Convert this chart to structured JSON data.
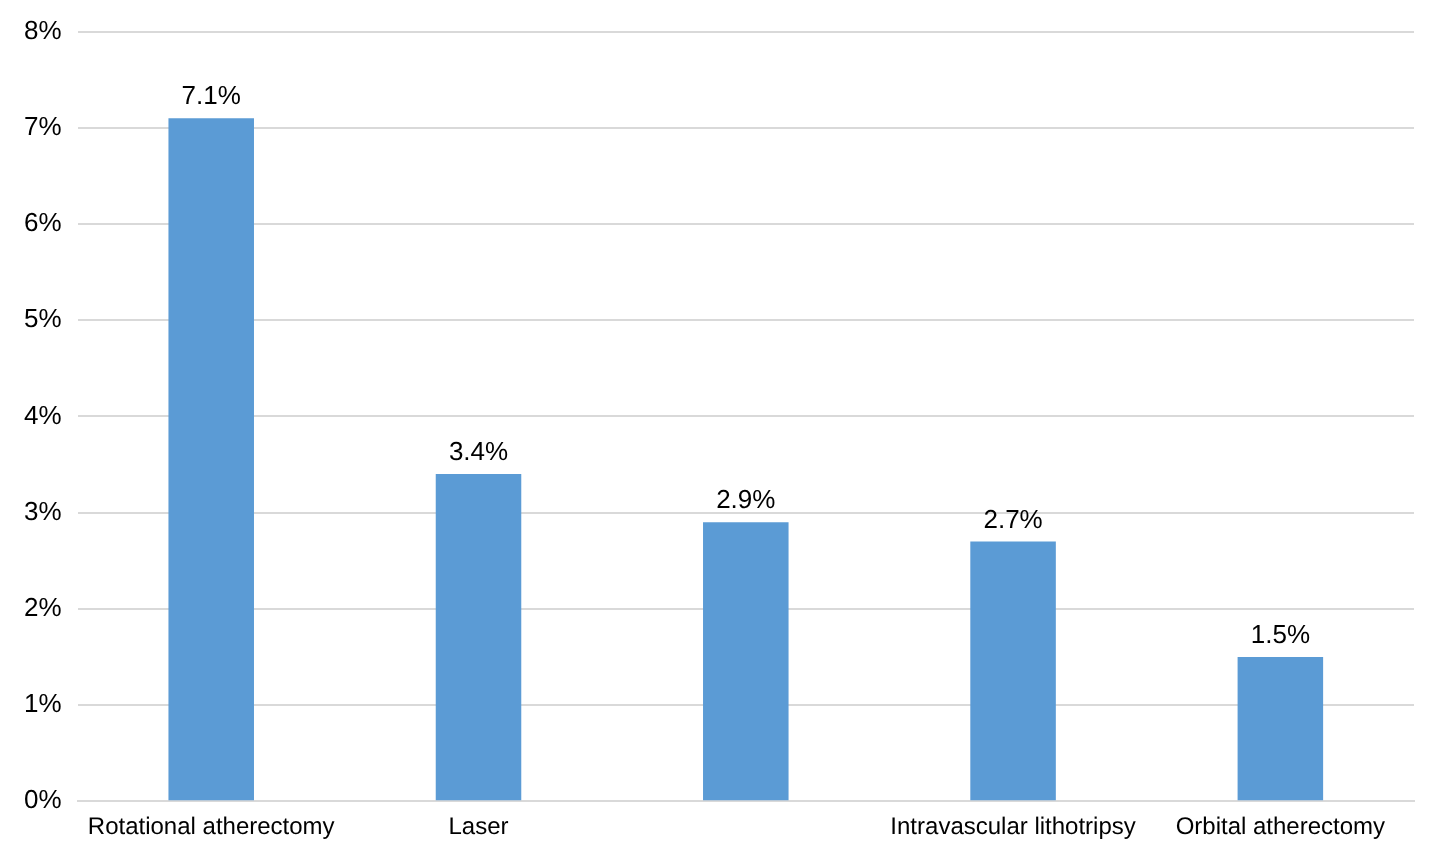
{
  "chart_data": {
    "type": "bar",
    "categories": [
      "Rotational atherectomy",
      "Laser",
      null,
      "Intravascular lithotripsy",
      "Orbital atherectomy"
    ],
    "values": [
      7.1,
      3.4,
      2.9,
      2.7,
      1.5
    ],
    "color": "#5b9bd5",
    "value_labels": [
      "7.1%",
      "3.4%",
      "2.9%",
      "2.7%",
      "1.5%"
    ],
    "ylim": [
      0,
      8
    ],
    "yticks": [
      {
        "value": 0,
        "label": "0%"
      },
      {
        "value": 1,
        "label": "1%"
      },
      {
        "value": 2,
        "label": "2%"
      },
      {
        "value": 3,
        "label": "3%"
      },
      {
        "value": 4,
        "label": "4%"
      },
      {
        "value": 5,
        "label": "5%"
      },
      {
        "value": 6,
        "label": "6%"
      },
      {
        "value": 7,
        "label": "7%"
      },
      {
        "value": 8,
        "label": "8%"
      }
    ],
    "grid": "y",
    "legend": false
  }
}
